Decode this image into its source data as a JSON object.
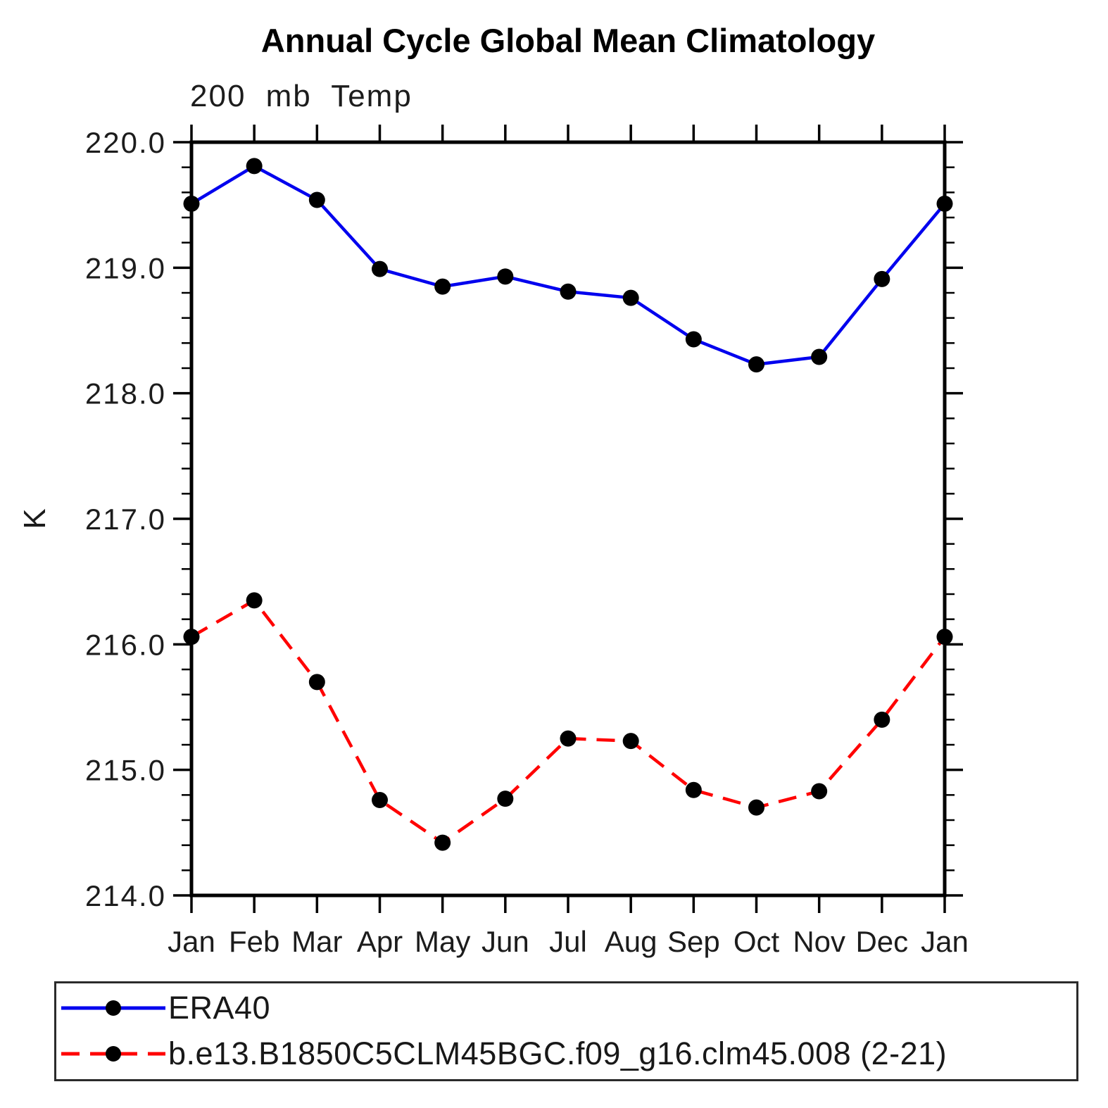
{
  "chart_data": {
    "type": "line",
    "title": "Annual Cycle Global Mean Climatology",
    "subtitle": "200 mb Temp",
    "ylabel": "K",
    "xlabel": "",
    "categories": [
      "Jan",
      "Feb",
      "Mar",
      "Apr",
      "May",
      "Jun",
      "Jul",
      "Aug",
      "Sep",
      "Oct",
      "Nov",
      "Dec",
      "Jan"
    ],
    "ylim": [
      214.0,
      220.0
    ],
    "y_major_tick_step": 1.0,
    "y_minor_tick_step": 0.2,
    "y_tick_labels": [
      "220.0",
      "219.0",
      "218.0",
      "217.0",
      "216.0",
      "215.0",
      "214.0"
    ],
    "grid": false,
    "legend_position": "bottom",
    "axis_color": "#000000",
    "marker_color": "#000000",
    "series": [
      {
        "name": "ERA40",
        "color": "#0000ee",
        "line_style": "solid",
        "marker": "circle",
        "values": [
          219.51,
          219.81,
          219.54,
          218.99,
          218.85,
          218.93,
          218.81,
          218.76,
          218.43,
          218.23,
          218.29,
          218.91,
          219.51
        ]
      },
      {
        "name": "b.e13.B1850C5CLM45BGC.f09_g16.clm45.008 (2-21)",
        "color": "#ff0000",
        "line_style": "dashed",
        "marker": "circle",
        "values": [
          216.06,
          216.35,
          215.7,
          214.76,
          214.42,
          214.77,
          215.25,
          215.23,
          214.84,
          214.7,
          214.83,
          215.4,
          216.06
        ]
      }
    ]
  }
}
